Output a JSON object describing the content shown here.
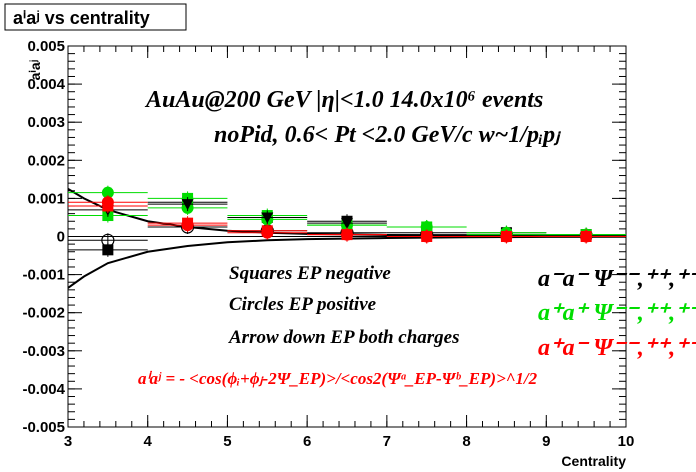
{
  "chart_data": {
    "type": "scatter",
    "title": "aⁱaʲ vs centrality",
    "xlabel": "Centrality",
    "ylabel": "aⁱaʲ",
    "xlim": [
      3,
      10
    ],
    "ylim": [
      -0.005,
      0.005
    ],
    "x_ticks": [
      3,
      4,
      5,
      6,
      7,
      8,
      9,
      10
    ],
    "y_ticks": [
      -0.005,
      -0.004,
      -0.003,
      -0.002,
      -0.001,
      0,
      0.001,
      0.002,
      0.003,
      0.004,
      0.005
    ],
    "x_tick_labels": [
      "3",
      "4",
      "5",
      "6",
      "7",
      "8",
      "9",
      "10"
    ],
    "y_tick_labels": [
      "-0.005",
      "-0.004",
      "-0.003",
      "-0.002",
      "-0.001",
      "0",
      "0.001",
      "0.002",
      "0.003",
      "0.004",
      "0.005"
    ],
    "grid": false,
    "series": [
      {
        "marker": "square",
        "color": "#000000",
        "x": [
          3.5,
          4.5,
          5.5,
          6.5,
          7.5,
          8.5,
          9.5
        ],
        "y": [
          -0.00035,
          0.0009,
          0.0005,
          0.0004,
          0.0001,
          0.0001,
          5e-05
        ],
        "xerr": 0.5
      },
      {
        "marker": "circle-open",
        "color": "#000000",
        "x": [
          3.5,
          4.5,
          5.5,
          6.5,
          7.5,
          8.5,
          9.5
        ],
        "y": [
          -0.0001,
          0.00025,
          0.00015,
          0.0001,
          5e-05,
          5e-05,
          3e-05
        ],
        "xerr": 0.5
      },
      {
        "marker": "square",
        "color": "#00dd00",
        "x": [
          3.5,
          4.5,
          5.5,
          6.5,
          7.5,
          8.5,
          9.5
        ],
        "y": [
          0.00055,
          0.001,
          0.00055,
          0.0003,
          0.00025,
          5e-05,
          5e-05
        ],
        "xerr": 0.5
      },
      {
        "marker": "circle",
        "color": "#00dd00",
        "x": [
          3.5,
          4.5,
          5.5,
          6.5,
          7.5,
          8.5,
          9.5
        ],
        "y": [
          0.00115,
          0.00075,
          0.00045,
          0.0003,
          0.00025,
          0.0001,
          5e-05
        ],
        "xerr": 0.5
      },
      {
        "marker": "triangle-down",
        "color": "#000000",
        "x": [
          3.5,
          4.5,
          5.5,
          6.5
        ],
        "y": [
          0.0007,
          0.00085,
          0.0005,
          0.00035
        ],
        "xerr": 0.5
      },
      {
        "marker": "square",
        "color": "#ff0000",
        "x": [
          3.5,
          4.5,
          5.5,
          6.5,
          7.5,
          8.5,
          9.5
        ],
        "y": [
          0.0008,
          0.00035,
          0.00015,
          5e-05,
          0.0,
          0.0,
          0.0
        ],
        "xerr": 0.5
      },
      {
        "marker": "circle",
        "color": "#ff0000",
        "x": [
          3.5,
          4.5,
          5.5,
          6.5,
          7.5,
          8.5,
          9.5
        ],
        "y": [
          0.0009,
          0.0003,
          0.0001,
          5e-05,
          0.0,
          0.0,
          0.0
        ],
        "xerr": 0.5
      }
    ],
    "curves": [
      {
        "color": "#000000",
        "x": [
          3.0,
          3.2,
          3.5,
          4.0,
          4.5,
          5.0,
          5.5,
          6.0,
          7.0,
          8.0,
          9.0,
          10.0
        ],
        "y": [
          0.00125,
          0.001,
          0.0007,
          0.0004,
          0.00025,
          0.00015,
          0.0001,
          7e-05,
          4e-05,
          2e-05,
          1e-05,
          5e-06
        ]
      },
      {
        "color": "#000000",
        "x": [
          3.0,
          3.2,
          3.5,
          4.0,
          4.5,
          5.0,
          5.5,
          6.0,
          7.0,
          8.0,
          9.0,
          10.0
        ],
        "y": [
          -0.00135,
          -0.00105,
          -0.0007,
          -0.0004,
          -0.00025,
          -0.00015,
          -0.0001,
          -7e-05,
          -4e-05,
          -2e-05,
          -1e-05,
          -5e-06
        ]
      }
    ],
    "annotations": {
      "line1": "AuAu@200 GeV |η|<1.0 14.0x10⁶ events",
      "line2": "noPid, 0.6< Pt <2.0 GeV/c w~1/pᵢpⱼ",
      "legend1": "Squares EP negative",
      "legend2": "Circles EP positive",
      "legend3": "Arrow down EP both charges",
      "formula": "aⁱaʲ = - <cos(ϕᵢ+ϕⱼ-2Ψ_EP)>/<cos2(Ψᵃ_EP-Ψᵇ_EP)>^1/2",
      "key1": "a⁻a⁻  Ψ⁻⁻,⁺⁺,⁺⁻",
      "key2": "a⁺a⁺  Ψ⁻⁻,⁺⁺,⁺⁻",
      "key3": "a⁺a⁻  Ψ⁻⁻,⁺⁺,⁺⁻"
    },
    "colors": {
      "black": "#000000",
      "green": "#00dd00",
      "red": "#ff0000"
    }
  }
}
